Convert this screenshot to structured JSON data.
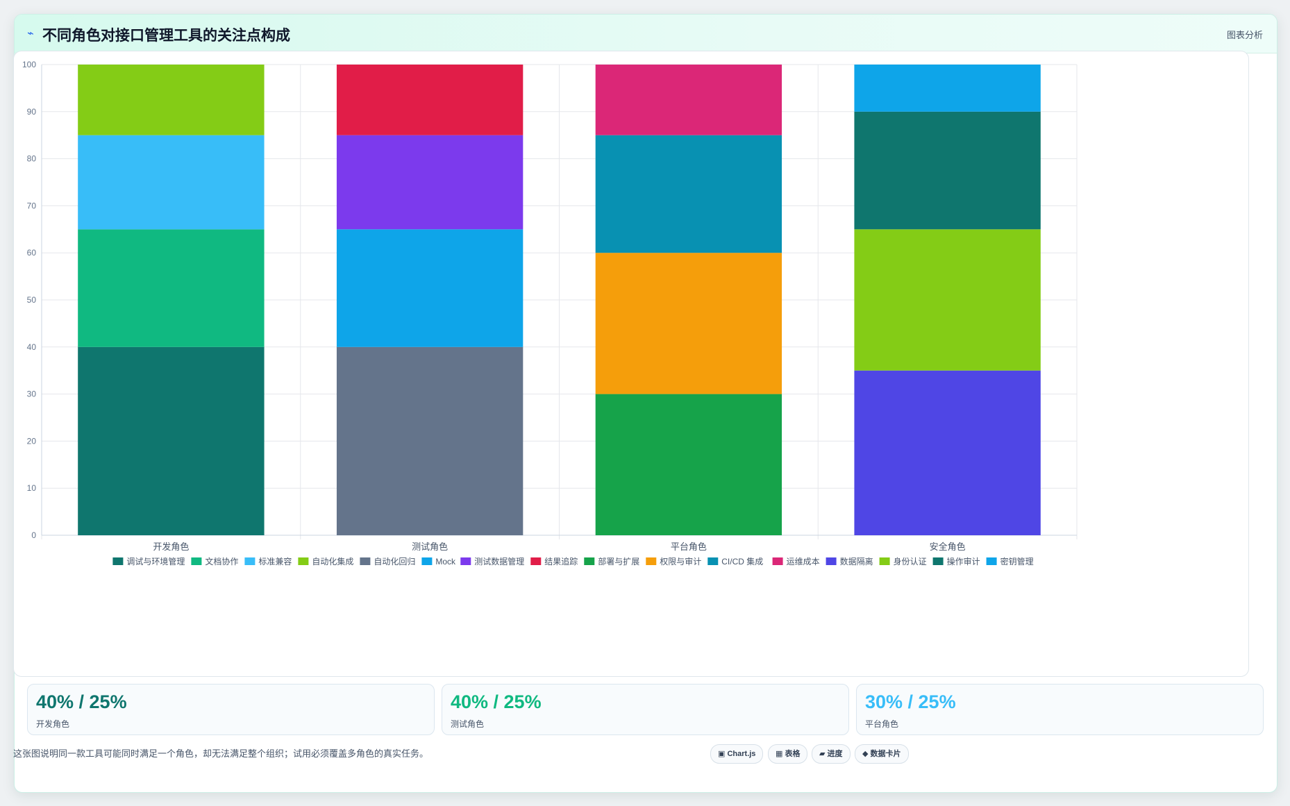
{
  "header": {
    "logo_icon": "⌁",
    "title": "不同角色对接口管理工具的关注点构成",
    "analyze_label": "图表分析"
  },
  "chart_data": {
    "type": "bar",
    "stacked": true,
    "categories": [
      "开发角色",
      "测试角色",
      "平台角色",
      "安全角色"
    ],
    "ylim": [
      0,
      100
    ],
    "yticks": [
      0,
      10,
      20,
      30,
      40,
      50,
      60,
      70,
      80,
      90,
      100
    ],
    "grid": true,
    "legend_position": "bottom",
    "series": [
      {
        "name": "调试与环境管理",
        "color": "#0f766e",
        "values": [
          40,
          0,
          0,
          0
        ]
      },
      {
        "name": "文档协作",
        "color": "#10b981",
        "values": [
          25,
          0,
          0,
          0
        ]
      },
      {
        "name": "标准兼容",
        "color": "#38bdf8",
        "values": [
          20,
          0,
          0,
          0
        ]
      },
      {
        "name": "自动化集成",
        "color": "#84cc16",
        "values": [
          15,
          0,
          0,
          0
        ]
      },
      {
        "name": "自动化回归",
        "color": "#64748b",
        "values": [
          0,
          40,
          0,
          0
        ]
      },
      {
        "name": "Mock",
        "color": "#0ea5e9",
        "values": [
          0,
          25,
          0,
          0
        ]
      },
      {
        "name": "测试数据管理",
        "color": "#7c3aed",
        "values": [
          0,
          20,
          0,
          0
        ]
      },
      {
        "name": "结果追踪",
        "color": "#e11d48",
        "values": [
          0,
          15,
          0,
          0
        ]
      },
      {
        "name": "部署与扩展",
        "color": "#16a34a",
        "values": [
          0,
          0,
          30,
          0
        ]
      },
      {
        "name": "权限与审计",
        "color": "#f59e0b",
        "values": [
          0,
          0,
          30,
          0
        ]
      },
      {
        "name": "CI/CD 集成",
        "color": "#0891b2",
        "values": [
          0,
          0,
          25,
          0
        ]
      },
      {
        "name": "运维成本",
        "color": "#db2777",
        "values": [
          0,
          0,
          15,
          0
        ]
      },
      {
        "name": "数据隔离",
        "color": "#4f46e5",
        "values": [
          0,
          0,
          0,
          35
        ]
      },
      {
        "name": "身份认证",
        "color": "#84cc16",
        "values": [
          0,
          0,
          0,
          30
        ]
      },
      {
        "name": "操作审计",
        "color": "#0f766e",
        "values": [
          0,
          0,
          0,
          25
        ]
      },
      {
        "name": "密钥管理",
        "color": "#0ea5e9",
        "values": [
          0,
          0,
          0,
          10
        ]
      }
    ]
  },
  "stats": [
    {
      "value": "40% / 25%",
      "label": "开发角色",
      "color": "#0f766e"
    },
    {
      "value": "40% / 25%",
      "label": "测试角色",
      "color": "#10b981"
    },
    {
      "value": "30% / 25%",
      "label": "平台角色",
      "color": "#38bdf8"
    }
  ],
  "footer": {
    "note": "这张图说明同一款工具可能同时满足一个角色，却无法满足整个组织；试用必须覆盖多角色的真实任务。",
    "pills": [
      {
        "icon": "▣",
        "label": "Chart.js"
      },
      {
        "icon": "▦",
        "label": "表格"
      },
      {
        "icon": "▰",
        "label": "进度"
      },
      {
        "icon": "◆",
        "label": "数据卡片"
      }
    ]
  }
}
